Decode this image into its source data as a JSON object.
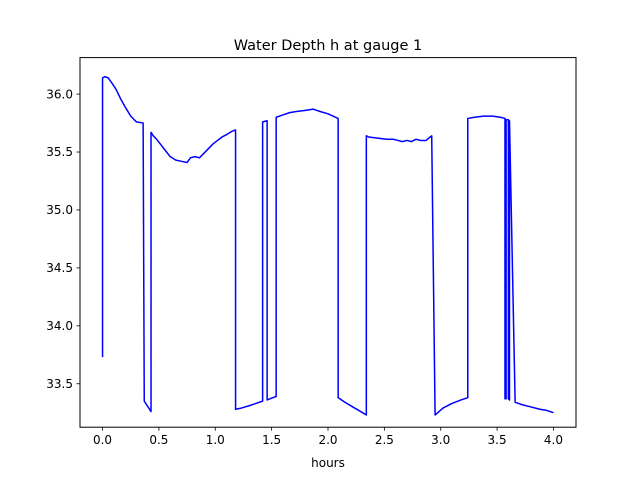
{
  "chart_data": {
    "type": "line",
    "title": "Water Depth h at gauge 1",
    "xlabel": "hours",
    "ylabel": "",
    "xlim": [
      -0.2,
      4.2
    ],
    "ylim": [
      33.125,
      36.315
    ],
    "xticks": [
      0.0,
      0.5,
      1.0,
      1.5,
      2.0,
      2.5,
      3.0,
      3.5,
      4.0
    ],
    "xtick_labels": [
      "0.0",
      "0.5",
      "1.0",
      "1.5",
      "2.0",
      "2.5",
      "3.0",
      "3.5",
      "4.0"
    ],
    "yticks": [
      33.5,
      34.0,
      34.5,
      35.0,
      35.5,
      36.0
    ],
    "ytick_labels": [
      "33.5",
      "34.0",
      "34.5",
      "35.0",
      "35.5",
      "36.0"
    ],
    "grid": false,
    "legend": "none",
    "series": [
      {
        "color": "#0000ff",
        "x": [
          0.0,
          0.0,
          0.02,
          0.05,
          0.08,
          0.12,
          0.16,
          0.2,
          0.25,
          0.3,
          0.36,
          0.37,
          0.37,
          0.43,
          0.43,
          0.45,
          0.48,
          0.52,
          0.56,
          0.6,
          0.65,
          0.7,
          0.75,
          0.78,
          0.82,
          0.86,
          0.9,
          0.94,
          0.98,
          1.02,
          1.06,
          1.1,
          1.15,
          1.18,
          1.18,
          1.23,
          1.3,
          1.36,
          1.42,
          1.42,
          1.46,
          1.46,
          1.51,
          1.54,
          1.54,
          1.6,
          1.66,
          1.72,
          1.8,
          1.87,
          1.93,
          2.0,
          2.09,
          2.09,
          2.15,
          2.22,
          2.29,
          2.34,
          2.34,
          2.36,
          2.44,
          2.52,
          2.58,
          2.62,
          2.66,
          2.7,
          2.74,
          2.78,
          2.82,
          2.87,
          2.92,
          2.92,
          2.95,
          3.02,
          3.1,
          3.18,
          3.24,
          3.24,
          3.3,
          3.38,
          3.46,
          3.53,
          3.57,
          3.57,
          3.58,
          3.58,
          3.6,
          3.6,
          3.61,
          3.61,
          3.66,
          3.72,
          3.8,
          3.88,
          3.94,
          4.0
        ],
        "y": [
          33.73,
          36.14,
          36.15,
          36.14,
          36.1,
          36.04,
          35.96,
          35.89,
          35.81,
          35.76,
          35.75,
          33.35,
          33.35,
          33.26,
          35.67,
          35.64,
          35.61,
          35.56,
          35.51,
          35.46,
          35.43,
          35.42,
          35.41,
          35.45,
          35.46,
          35.45,
          35.49,
          35.53,
          35.57,
          35.6,
          35.63,
          35.65,
          35.68,
          35.69,
          33.28,
          33.29,
          33.31,
          33.33,
          33.35,
          35.76,
          35.77,
          33.36,
          33.38,
          33.39,
          35.8,
          35.82,
          35.84,
          35.85,
          35.86,
          35.87,
          35.85,
          35.83,
          35.79,
          33.38,
          33.34,
          33.3,
          33.26,
          33.23,
          35.64,
          35.63,
          35.62,
          35.61,
          35.61,
          35.6,
          35.59,
          35.6,
          35.59,
          35.61,
          35.6,
          35.6,
          35.64,
          35.64,
          33.23,
          33.29,
          33.33,
          33.36,
          33.38,
          35.79,
          35.8,
          35.81,
          35.81,
          35.8,
          35.79,
          33.37,
          33.37,
          35.78,
          35.78,
          33.37,
          33.36,
          35.77,
          33.34,
          33.32,
          33.3,
          33.28,
          33.27,
          33.25
        ]
      }
    ]
  }
}
